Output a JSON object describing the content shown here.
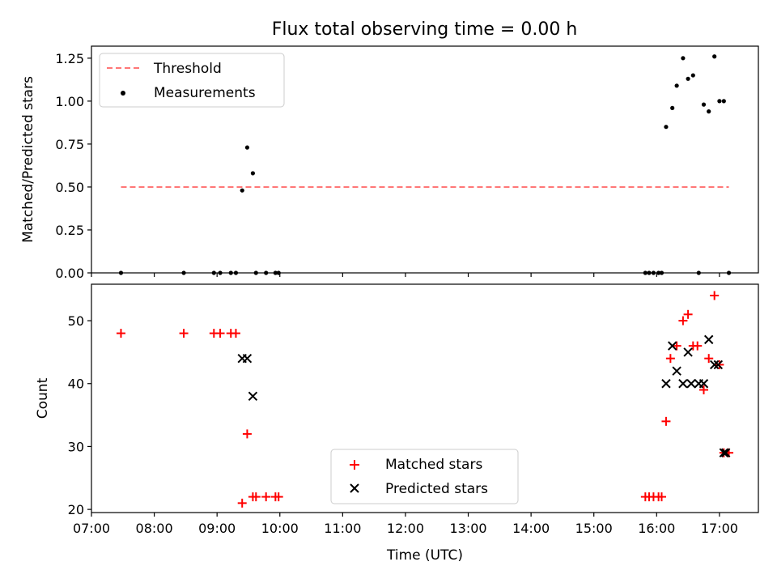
{
  "chart_data": [
    {
      "type": "scatter",
      "panel": "top",
      "title": "Flux total observing time = 0.00 h",
      "xlabel": "",
      "ylabel": "Matched/Predicted stars",
      "ylim": [
        0,
        1.32
      ],
      "yticks": [
        0.0,
        0.25,
        0.5,
        0.75,
        1.0,
        1.25
      ],
      "ytick_labels": [
        "0.00",
        "0.25",
        "0.50",
        "0.75",
        "1.00",
        "1.25"
      ],
      "legend_position": "top-left",
      "threshold": {
        "name": "Threshold",
        "value": 0.5,
        "x_range": [
          7.47,
          17.15
        ],
        "color": "#ff7777"
      },
      "series": [
        {
          "name": "Measurements",
          "color": "#000000",
          "marker": "dot",
          "x": [
            7.47,
            8.47,
            8.95,
            9.05,
            9.22,
            9.3,
            9.4,
            9.48,
            9.57,
            9.62,
            9.78,
            9.93,
            9.98,
            15.82,
            15.88,
            15.95,
            16.03,
            16.08,
            16.15,
            16.25,
            16.32,
            16.42,
            16.5,
            16.58,
            16.67,
            16.75,
            16.83,
            16.92,
            17.0,
            17.07,
            17.15
          ],
          "y": [
            0.0,
            0.0,
            0.0,
            0.0,
            0.0,
            0.0,
            0.48,
            0.73,
            0.58,
            0.0,
            0.0,
            0.0,
            0.0,
            0.0,
            0.0,
            0.0,
            0.0,
            0.0,
            0.85,
            0.96,
            1.09,
            1.25,
            1.13,
            1.15,
            0.0,
            0.98,
            0.94,
            1.26,
            1.0,
            1.0,
            0.0
          ]
        }
      ]
    },
    {
      "type": "scatter",
      "panel": "bottom",
      "title": "",
      "xlabel": "Time (UTC)",
      "ylabel": "Count",
      "xlim": [
        7.0,
        17.62
      ],
      "ylim": [
        19.5,
        55.8
      ],
      "xticks": [
        7,
        8,
        9,
        10,
        11,
        12,
        13,
        14,
        15,
        16,
        17
      ],
      "xtick_labels": [
        "07:00",
        "08:00",
        "09:00",
        "10:00",
        "11:00",
        "12:00",
        "13:00",
        "14:00",
        "15:00",
        "16:00",
        "17:00"
      ],
      "yticks": [
        20,
        30,
        40,
        50
      ],
      "ytick_labels": [
        "20",
        "30",
        "40",
        "50"
      ],
      "legend_position": "bottom-center",
      "series": [
        {
          "name": "Matched stars",
          "color": "#ff0000",
          "marker": "plus",
          "x": [
            7.47,
            8.47,
            8.95,
            9.05,
            9.22,
            9.3,
            9.4,
            9.48,
            9.57,
            9.62,
            9.78,
            9.93,
            9.98,
            15.82,
            15.88,
            15.95,
            16.03,
            16.08,
            16.15,
            16.22,
            16.32,
            16.42,
            16.5,
            16.58,
            16.65,
            16.75,
            16.83,
            16.92,
            17.0,
            17.07,
            17.15
          ],
          "y": [
            48,
            48,
            48,
            48,
            48,
            48,
            21,
            32,
            22,
            22,
            22,
            22,
            22,
            22,
            22,
            22,
            22,
            22,
            34,
            44,
            46,
            50,
            51,
            46,
            46,
            39,
            44,
            54,
            43,
            29,
            29
          ]
        },
        {
          "name": "Predicted stars",
          "color": "#000000",
          "marker": "x",
          "x": [
            9.4,
            9.48,
            9.57,
            16.15,
            16.25,
            16.32,
            16.42,
            16.5,
            16.55,
            16.67,
            16.75,
            16.83,
            16.92,
            16.98,
            17.07,
            17.1
          ],
          "y": [
            44,
            44,
            38,
            40,
            46,
            42,
            40,
            45,
            40,
            40,
            40,
            47,
            43,
            43,
            29,
            29
          ]
        }
      ]
    }
  ]
}
